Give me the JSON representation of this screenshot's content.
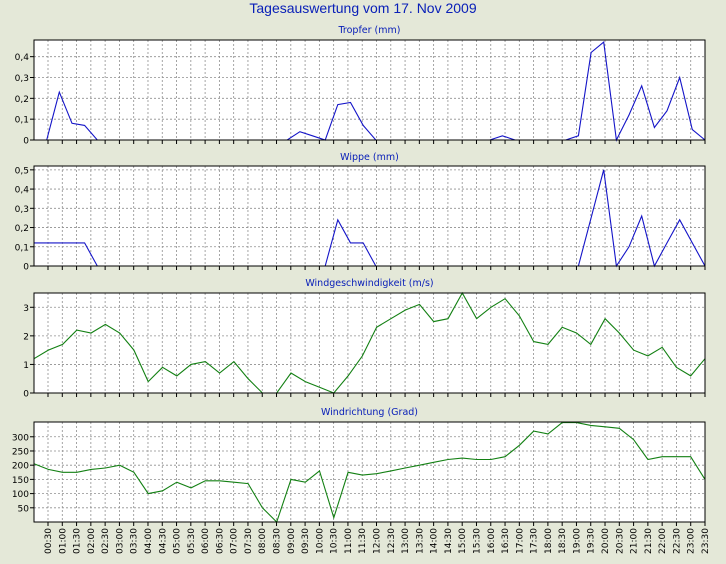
{
  "page": {
    "title": "Tagesauswertung vom 17. Nov 2009"
  },
  "colors": {
    "background": "#e4e8d8",
    "plot": "#ffffff",
    "grid": "#8f8f8f",
    "blue": "#1414c8",
    "green": "#138013",
    "title": "#0a20b8"
  },
  "x_ticks": [
    "00:30",
    "01:00",
    "01:30",
    "02:00",
    "02:30",
    "03:00",
    "03:30",
    "04:00",
    "04:30",
    "05:00",
    "05:30",
    "06:00",
    "06:30",
    "07:00",
    "07:30",
    "08:00",
    "08:30",
    "09:00",
    "09:30",
    "10:00",
    "10:30",
    "11:00",
    "11:30",
    "12:00",
    "12:30",
    "13:00",
    "13:30",
    "14:00",
    "14:30",
    "15:00",
    "15:30",
    "16:00",
    "16:30",
    "17:00",
    "17:30",
    "18:00",
    "18:30",
    "19:00",
    "19:30",
    "20:00",
    "20:30",
    "21:00",
    "21:30",
    "22:00",
    "22:30",
    "23:00",
    "23:30"
  ],
  "chart_data": [
    {
      "type": "line",
      "title": "Tropfer (mm)",
      "ylim": [
        0,
        0.48
      ],
      "yticks": [
        "0",
        "0,1",
        "0,2",
        "0,3",
        "0,4"
      ],
      "yvals": [
        0,
        0.1,
        0.2,
        0.3,
        0.4
      ],
      "grid": true,
      "color": "#1414c8",
      "series": [
        {
          "values": [
            0.0,
            0.0,
            0.23,
            0.08,
            0.07,
            0.0,
            0.0,
            0.0,
            0.0,
            0.0,
            0.0,
            0.0,
            0.0,
            0.0,
            0.0,
            0.0,
            0.0,
            0.0,
            0.0,
            0.0,
            0.0,
            0.04,
            0.02,
            0.0,
            0.17,
            0.18,
            0.07,
            0.0,
            0.0,
            0.0,
            0.0,
            0.0,
            0.0,
            0.0,
            0.0,
            0.0,
            0.0,
            0.02,
            0.0,
            0.0,
            0.0,
            0.0,
            0.0,
            0.02,
            0.42,
            0.47,
            0.0,
            0.12,
            0.26,
            0.06,
            0.14,
            0.3,
            0.05,
            0.0
          ]
        }
      ]
    },
    {
      "type": "line",
      "title": "Wippe (mm)",
      "ylim": [
        0,
        0.52
      ],
      "yticks": [
        "0",
        "0,1",
        "0,2",
        "0,3",
        "0,4",
        "0,5"
      ],
      "yvals": [
        0,
        0.1,
        0.2,
        0.3,
        0.4,
        0.5
      ],
      "grid": true,
      "color": "#1414c8",
      "series": [
        {
          "values": [
            0.12,
            0.12,
            0.12,
            0.12,
            0.12,
            0.0,
            0.0,
            0.0,
            0.0,
            0.0,
            0.0,
            0.0,
            0.0,
            0.0,
            0.0,
            0.0,
            0.0,
            0.0,
            0.0,
            0.0,
            0.0,
            0.0,
            0.0,
            0.0,
            0.24,
            0.12,
            0.12,
            0.0,
            0.0,
            0.0,
            0.0,
            0.0,
            0.0,
            0.0,
            0.0,
            0.0,
            0.0,
            0.0,
            0.0,
            0.0,
            0.0,
            0.0,
            0.0,
            0.0,
            0.25,
            0.5,
            0.0,
            0.1,
            0.26,
            0.0,
            0.12,
            0.24,
            0.12,
            0.0
          ]
        }
      ]
    },
    {
      "type": "line",
      "title": "Windgeschwindigkeit (m/s)",
      "ylim": [
        0,
        3.5
      ],
      "yticks": [
        "0",
        "1",
        "2",
        "3"
      ],
      "yvals": [
        0,
        1,
        2,
        3
      ],
      "grid": true,
      "color": "#138013",
      "series": [
        {
          "values": [
            1.2,
            1.5,
            1.7,
            2.2,
            2.1,
            2.4,
            2.1,
            1.5,
            0.4,
            0.9,
            0.6,
            1.0,
            1.1,
            0.7,
            1.1,
            0.5,
            0.0,
            0.0,
            0.7,
            0.4,
            0.2,
            0.0,
            0.6,
            1.3,
            2.3,
            2.6,
            2.9,
            3.1,
            2.5,
            2.6,
            3.5,
            2.6,
            3.0,
            3.3,
            2.7,
            1.8,
            1.7,
            2.3,
            2.1,
            1.7,
            2.6,
            2.1,
            1.5,
            1.3,
            1.6,
            0.9,
            0.6,
            1.2
          ]
        }
      ]
    },
    {
      "type": "line",
      "title": "Windrichtung (Grad)",
      "ylim": [
        0,
        352
      ],
      "yticks": [
        "50",
        "100",
        "150",
        "200",
        "250",
        "300"
      ],
      "yvals": [
        50,
        100,
        150,
        200,
        250,
        300
      ],
      "grid": true,
      "color": "#138013",
      "series": [
        {
          "values": [
            205,
            185,
            175,
            175,
            185,
            190,
            200,
            175,
            100,
            110,
            140,
            120,
            145,
            145,
            140,
            135,
            50,
            0,
            150,
            140,
            180,
            15,
            175,
            165,
            170,
            180,
            190,
            200,
            210,
            220,
            225,
            220,
            220,
            230,
            270,
            320,
            310,
            350,
            350,
            340,
            335,
            330,
            290,
            220,
            230,
            230,
            230,
            150
          ]
        }
      ]
    }
  ]
}
